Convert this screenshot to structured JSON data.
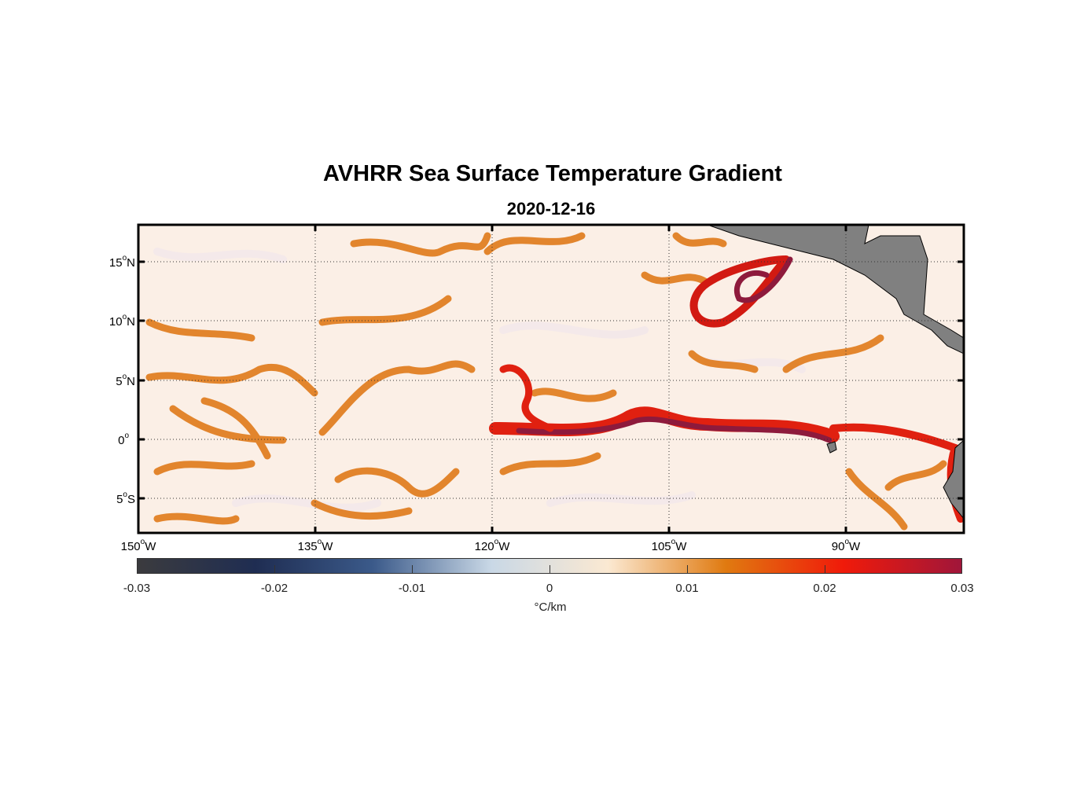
{
  "title": "AVHRR Sea Surface Temperature Gradient",
  "subtitle": "2020-12-16",
  "map": {
    "lon_range": [
      -150,
      -83
    ],
    "lat_range": [
      -8,
      18
    ],
    "lat_ticks": [
      {
        "deg": "15",
        "hemi": "N"
      },
      {
        "deg": "10",
        "hemi": "N"
      },
      {
        "deg": "5",
        "hemi": "N"
      },
      {
        "deg": "0",
        "hemi": ""
      },
      {
        "deg": "5",
        "hemi": "S"
      }
    ],
    "lon_ticks": [
      {
        "deg": "150",
        "hemi": "W"
      },
      {
        "deg": "135",
        "hemi": "W"
      },
      {
        "deg": "120",
        "hemi": "W"
      },
      {
        "deg": "105",
        "hemi": "W"
      },
      {
        "deg": "90",
        "hemi": "W"
      }
    ],
    "grid": true,
    "land_color": "#808080",
    "ocean_background": "#fbefe6"
  },
  "colorbar": {
    "ticks": [
      "-0.03",
      "-0.02",
      "-0.01",
      "0",
      "0.01",
      "0.02",
      "0.03"
    ],
    "units": "°C/km",
    "range": [
      -0.03,
      0.03
    ],
    "colors": [
      "#3b3b3e",
      "#1f2d52",
      "#3b5a8a",
      "#c9d8e6",
      "#fbe9d2",
      "#e07a10",
      "#f01a0a",
      "#a0163a"
    ]
  }
}
